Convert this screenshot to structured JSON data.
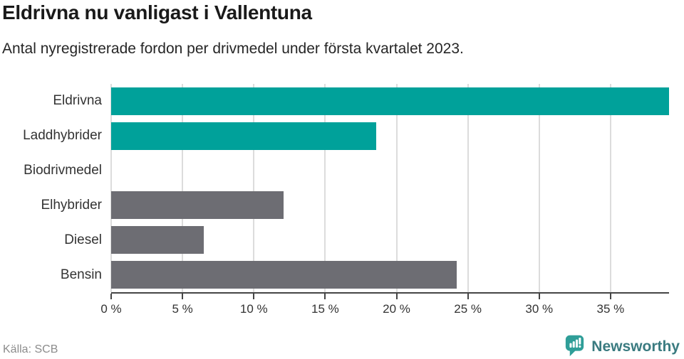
{
  "chart_data": {
    "type": "bar",
    "orientation": "horizontal",
    "title": "Eldrivna nu vanligast i Vallentuna",
    "subtitle": "Antal nyregistrerade fordon per drivmedel under första kvartalet 2023.",
    "categories": [
      "Eldrivna",
      "Laddhybrider",
      "Biodrivmedel",
      "Elhybrider",
      "Diesel",
      "Bensin"
    ],
    "values": [
      39.1,
      18.6,
      0,
      12.1,
      6.5,
      24.2
    ],
    "unit": "%",
    "bar_colors": [
      "#00a19a",
      "#00a19a",
      "#00a19a",
      "#6d6d73",
      "#6d6d73",
      "#6d6d73"
    ],
    "accent_color": "#00a19a",
    "neutral_color": "#6d6d73",
    "xlim": [
      0,
      39.1
    ],
    "xticks": [
      0,
      5,
      10,
      15,
      20,
      25,
      30,
      35
    ],
    "xtick_labels": [
      "0 %",
      "5 %",
      "10 %",
      "15 %",
      "20 %",
      "25 %",
      "30 %",
      "35 %"
    ],
    "grid": true,
    "gridline_color": "#dcdcdc",
    "legend": false
  },
  "footer": {
    "source": "Källa: SCB",
    "brand": "Newsworthy",
    "brand_color": "#3a7b80",
    "logo_icon": "newsworthy-speech-bubble-bar-chart",
    "logo_color": "#2f9e98"
  }
}
